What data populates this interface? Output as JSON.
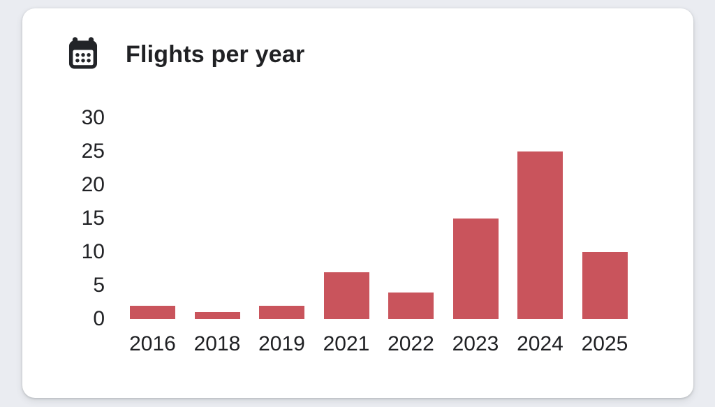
{
  "card": {
    "title": "Flights per year",
    "icon": "calendar-icon"
  },
  "chart_data": {
    "type": "bar",
    "title": "Flights per year",
    "categories": [
      "2016",
      "2018",
      "2019",
      "2021",
      "2022",
      "2023",
      "2024",
      "2025"
    ],
    "values": [
      2,
      1,
      2,
      7,
      4,
      15,
      25,
      10
    ],
    "xlabel": "",
    "ylabel": "",
    "ylim": [
      0,
      30
    ],
    "yticks": [
      0,
      5,
      10,
      15,
      20,
      25,
      30
    ],
    "grid": false,
    "legend": false
  },
  "colors": {
    "page_background": "#EAECF1",
    "card_background": "#FFFFFF",
    "bar": "#C9545C",
    "text": "#202124",
    "icon": "#222428"
  }
}
